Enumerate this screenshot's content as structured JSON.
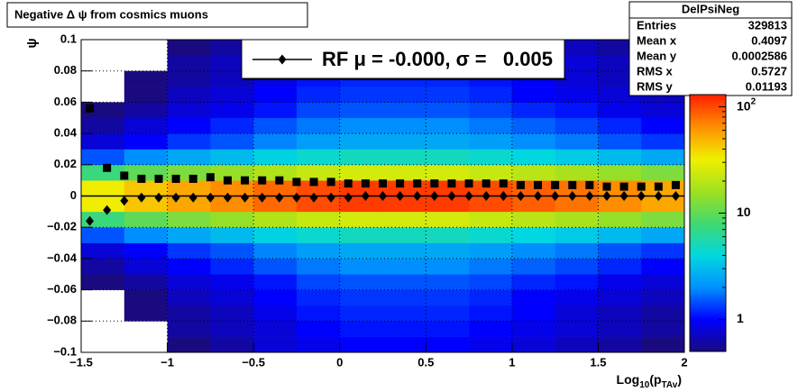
{
  "chart_data": {
    "type": "heatmap",
    "title": "Negative Δ ψ from cosmics muons",
    "ylabel": "ψ",
    "xlabel_parts": [
      {
        "text": "Log"
      },
      {
        "text": "10",
        "sub": true
      },
      {
        "text": "(p"
      },
      {
        "text": "TAv",
        "sub": true
      },
      {
        "text": ")"
      }
    ],
    "xlim": [
      -1.5,
      2
    ],
    "ylim": [
      -0.1,
      0.1
    ],
    "xticks": [
      {
        "value": -1.5,
        "label": "−1.5"
      },
      {
        "value": -1,
        "label": "−1"
      },
      {
        "value": -0.5,
        "label": "−0.5"
      },
      0,
      0.5,
      1,
      1.5,
      2
    ],
    "yticks": [
      {
        "value": -0.1,
        "label": "−0.1"
      },
      {
        "value": -0.08,
        "label": "−0.08"
      },
      {
        "value": -0.06,
        "label": "−0.06"
      },
      {
        "value": -0.04,
        "label": "−0.04"
      },
      {
        "value": -0.02,
        "label": "−0.02"
      },
      0,
      0.02,
      0.04,
      0.06,
      0.08,
      0.1
    ],
    "grid": true,
    "zlim": [
      0.5,
      130
    ],
    "zlog": true,
    "zticks": [
      1,
      10,
      {
        "value": 100,
        "label": "10",
        "exponent": "2"
      }
    ],
    "colormap": [
      "#1a0a80",
      "#0000ff",
      "#0090ff",
      "#00d8e0",
      "#40d870",
      "#a0e020",
      "#f0f000",
      "#ff9000",
      "#ff2000"
    ],
    "xbins": [
      -1.5,
      -1.25,
      -1,
      -0.75,
      -0.5,
      -0.25,
      0,
      0.25,
      0.5,
      0.75,
      1,
      1.25,
      1.5,
      1.75,
      2
    ],
    "ybins": [
      -0.1,
      -0.09,
      -0.08,
      -0.07,
      -0.06,
      -0.05,
      -0.04,
      -0.03,
      -0.02,
      -0.01,
      0,
      0.01,
      0.02,
      0.03,
      0.04,
      0.05,
      0.06,
      0.07,
      0.08,
      0.09,
      0.1
    ],
    "z": [
      [
        0.3,
        0.4,
        0.5,
        0.6,
        0.8,
        0.9,
        1,
        1,
        1,
        0.9,
        0.8,
        0.7,
        0.6,
        0.5
      ],
      [
        0.3,
        0.4,
        0.6,
        0.7,
        0.8,
        1,
        1.1,
        1.1,
        1.1,
        1,
        0.9,
        0.8,
        0.7,
        0.6
      ],
      [
        0.4,
        0.5,
        0.6,
        0.7,
        0.9,
        1.1,
        1.2,
        1.2,
        1.2,
        1.1,
        1,
        0.8,
        0.7,
        0.6
      ],
      [
        0.4,
        0.5,
        0.7,
        0.8,
        1,
        1.2,
        1.3,
        1.3,
        1.3,
        1.2,
        1,
        0.9,
        0.8,
        0.7
      ],
      [
        0.5,
        0.6,
        0.8,
        0.9,
        1.1,
        1.4,
        1.5,
        1.5,
        1.5,
        1.4,
        1.2,
        1.1,
        0.9,
        0.8
      ],
      [
        0.6,
        0.8,
        1,
        1.2,
        1.5,
        1.8,
        2,
        2,
        2,
        1.8,
        1.6,
        1.4,
        1.2,
        1
      ],
      [
        0.8,
        1,
        1.3,
        1.5,
        1.9,
        2.3,
        2.5,
        2.5,
        2.5,
        2.3,
        2,
        1.8,
        1.5,
        1.3
      ],
      [
        1.5,
        2,
        2.5,
        3,
        3.8,
        4.5,
        5,
        5,
        5,
        4.5,
        4,
        3.5,
        3,
        2.5
      ],
      [
        7.5,
        10,
        12.5,
        15,
        18.8,
        22.5,
        25,
        25,
        25,
        22.5,
        20,
        17.5,
        15,
        12.5
      ],
      [
        33,
        44,
        55,
        66,
        82.5,
        99,
        110,
        110,
        110,
        99,
        88,
        77,
        66,
        55
      ],
      [
        33,
        44,
        55,
        66,
        82.5,
        99,
        110,
        110,
        110,
        99,
        88,
        77,
        66,
        55
      ],
      [
        7.5,
        10,
        12.5,
        15,
        18.8,
        22.5,
        25,
        25,
        25,
        22.5,
        20,
        17.5,
        15,
        12.5
      ],
      [
        1.5,
        2,
        2.5,
        3,
        3.8,
        4.5,
        5,
        5,
        5,
        4.5,
        4,
        3.5,
        3,
        2.5
      ],
      [
        0.8,
        1,
        1.3,
        1.5,
        1.9,
        2.3,
        2.5,
        2.5,
        2.5,
        2.3,
        2,
        1.8,
        1.5,
        1.3
      ],
      [
        0.6,
        0.8,
        1,
        1.2,
        1.5,
        1.8,
        2,
        2,
        2,
        1.8,
        1.6,
        1.4,
        1.2,
        1
      ],
      [
        0.5,
        0.6,
        0.8,
        0.9,
        1.1,
        1.4,
        1.5,
        1.5,
        1.5,
        1.4,
        1.2,
        1.1,
        0.9,
        0.8
      ],
      [
        0.4,
        0.5,
        0.7,
        0.8,
        1,
        1.2,
        1.3,
        1.3,
        1.3,
        1.2,
        1,
        0.9,
        0.8,
        0.7
      ],
      [
        0.4,
        0.5,
        0.6,
        0.7,
        0.9,
        1.1,
        1.2,
        1.2,
        1.2,
        1.1,
        1,
        0.8,
        0.7,
        0.6
      ],
      [
        0.3,
        0.4,
        0.6,
        0.7,
        0.8,
        1,
        1.1,
        1.1,
        1.1,
        1,
        0.9,
        0.8,
        0.7,
        0.6
      ],
      [
        0.3,
        0.4,
        0.5,
        0.6,
        0.8,
        0.9,
        1,
        1,
        1,
        0.9,
        0.8,
        0.7,
        0.6,
        0.5
      ]
    ],
    "reference_line": 0,
    "x": [
      -1.45,
      -1.35,
      -1.25,
      -1.15,
      -1.05,
      -0.95,
      -0.85,
      -0.75,
      -0.65,
      -0.55,
      -0.45,
      -0.35,
      -0.25,
      -0.15,
      -0.05,
      0.05,
      0.15,
      0.25,
      0.35,
      0.45,
      0.55,
      0.65,
      0.75,
      0.85,
      0.95,
      1.05,
      1.15,
      1.25,
      1.35,
      1.45,
      1.55,
      1.65,
      1.75,
      1.85,
      1.95
    ],
    "series": [
      {
        "marker": "square",
        "color": "#000000",
        "values": [
          0.056,
          0.018,
          0.013,
          0.011,
          0.011,
          0.011,
          0.011,
          0.012,
          0.01,
          0.01,
          0.01,
          0.01,
          0.009,
          0.009,
          0.009,
          0.008,
          0.008,
          0.008,
          0.008,
          0.008,
          0.008,
          0.008,
          0.008,
          0.008,
          0.008,
          0.007,
          0.007,
          0.007,
          0.007,
          0.007,
          0.006,
          0.006,
          0.006,
          0.006,
          0.007
        ]
      },
      {
        "name": "RF μ = -0.000, σ =   0.005",
        "marker": "diamond",
        "color": "#000000",
        "values": [
          -0.016,
          -0.009,
          -0.003,
          -0.001,
          -0.001,
          -0.001,
          -0.001,
          -0.001,
          -0.001,
          -0.001,
          -0.001,
          -0.001,
          -0.001,
          -0.001,
          -0.001,
          -0.001,
          0,
          0,
          0,
          0,
          0,
          0,
          0,
          0,
          0,
          0,
          0,
          0,
          0,
          0,
          0,
          0,
          0,
          0,
          0
        ]
      }
    ],
    "stats": {
      "title": "DelPsiNeg",
      "rows": [
        [
          "Entries",
          "329813"
        ],
        [
          "Mean x",
          "0.4097"
        ],
        [
          "Mean y",
          "0.0002586"
        ],
        [
          "RMS x",
          "0.5727"
        ],
        [
          "RMS y",
          "0.01193"
        ]
      ]
    }
  }
}
